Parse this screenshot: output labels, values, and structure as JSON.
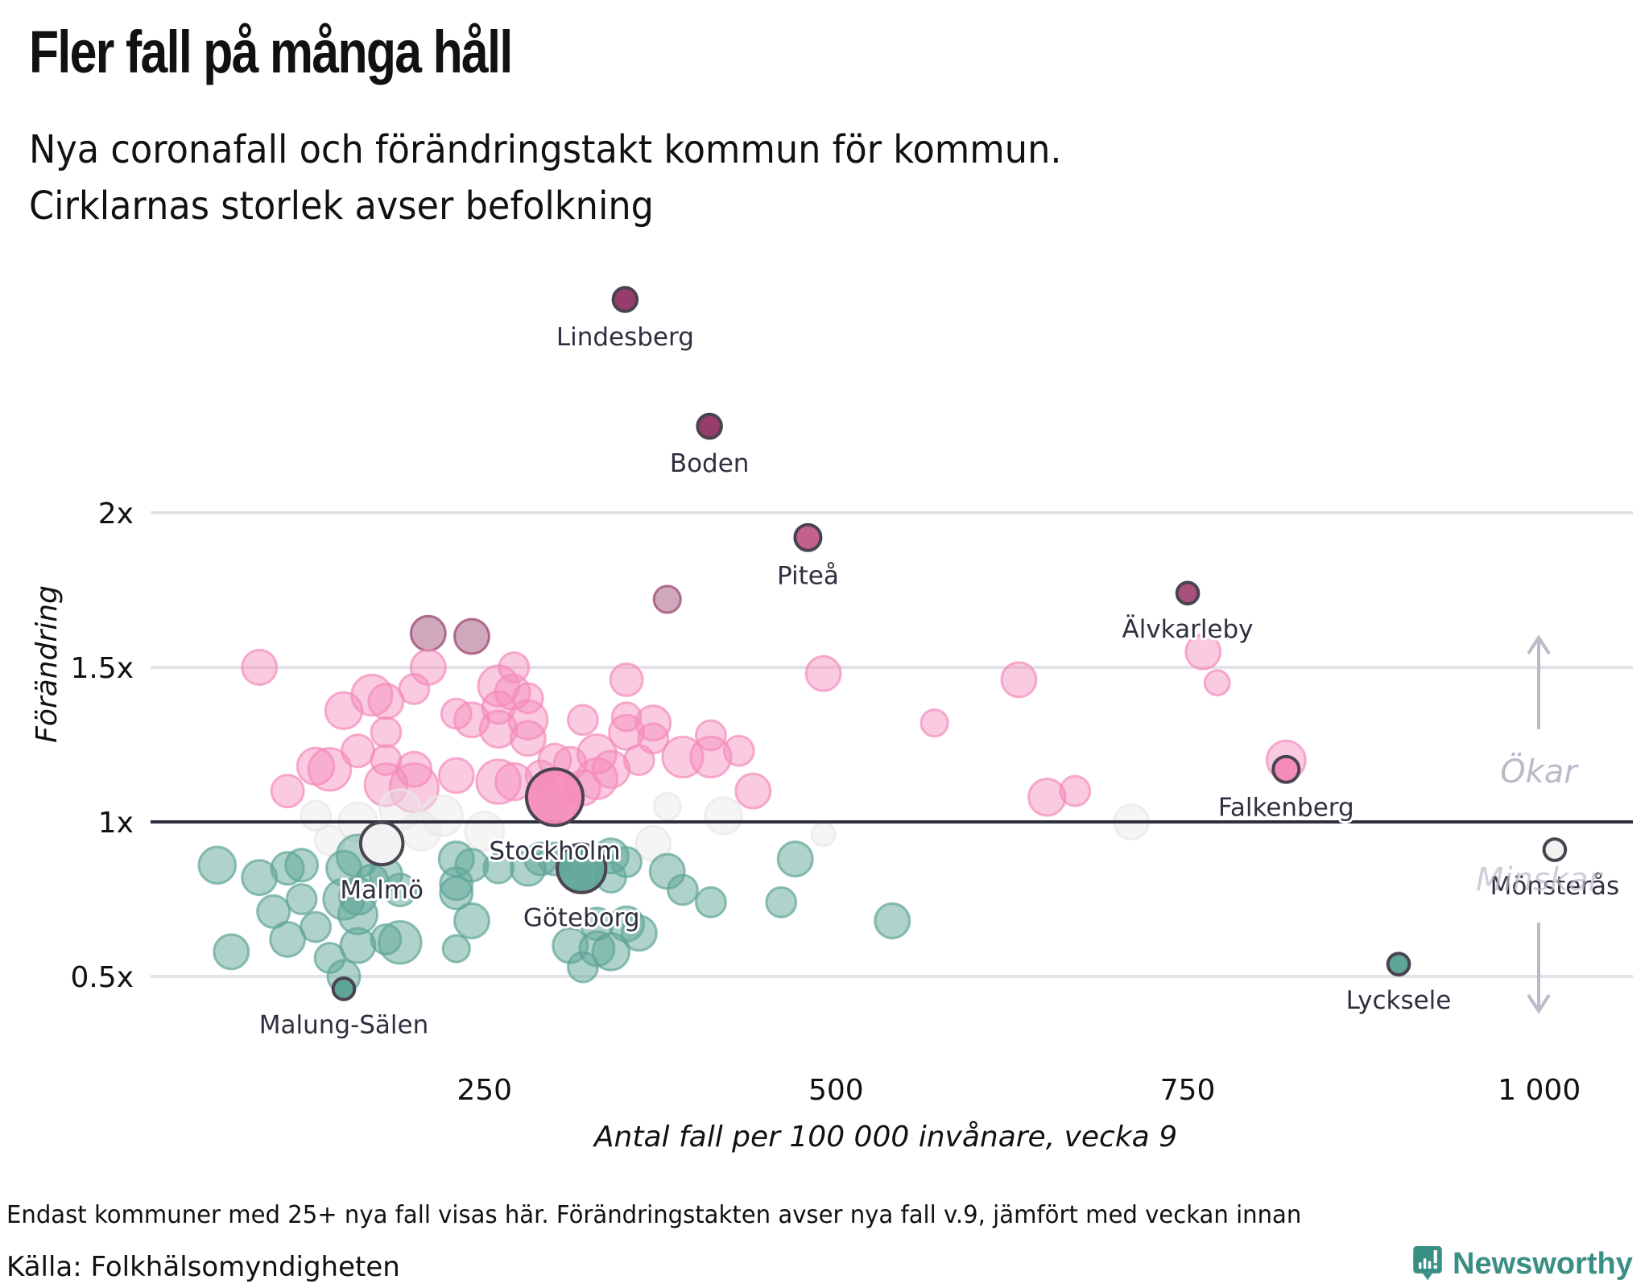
{
  "header": {
    "title": "Fler fall på många håll",
    "subtitle_line1": "Nya coronafall och förändringstakt kommun för kommun.",
    "subtitle_line2": "Cirklarnas storlek avser befolkning"
  },
  "footer": {
    "note": "Endast kommuner med 25+ nya fall visas här. Förändringstakten avser nya fall v.9, jämfört med veckan innan",
    "source": "Källa: Folkhälsomyndigheten",
    "brand": "Newsworthy",
    "brand_icon": "newsworthy-logo-icon"
  },
  "colors": {
    "increase": "#f48cbb",
    "strong_increase": "#973d6b",
    "decrease": "#5fa597",
    "neutral": "#e8e8e8",
    "highlight_stroke": "#4a4350",
    "gridline": "#e3e2e8",
    "baseline": "#2f2f3f",
    "direction": "#bbbac8",
    "brand": "#3a8f85"
  },
  "chart_data": {
    "type": "scatter",
    "title": "Fler fall på många håll",
    "subtitle": "Nya coronafall och förändringstakt kommun för kommun. Cirklarnas storlek avser befolkning",
    "xlabel": "Antal fall per 100 000 invånare, vecka 9",
    "ylabel": "Förändring",
    "xlim": [
      0,
      1075
    ],
    "ylim": [
      0.3,
      2.9
    ],
    "xticks": [
      {
        "value": 250,
        "label": "250"
      },
      {
        "value": 500,
        "label": "500"
      },
      {
        "value": 750,
        "label": "750"
      },
      {
        "value": 1000,
        "label": "1 000"
      }
    ],
    "yticks": [
      {
        "value": 0.5,
        "label": "0.5x"
      },
      {
        "value": 1,
        "label": "1x"
      },
      {
        "value": 1.5,
        "label": "1.5x"
      },
      {
        "value": 2,
        "label": "2x"
      }
    ],
    "grid": true,
    "reference_line": 1,
    "direction_labels": {
      "up": "Ökar",
      "down": "Minskar"
    },
    "size_encoding": "population (relative, 1-10)",
    "labeled_points": [
      {
        "name": "Lindesberg",
        "x": 350,
        "y": 2.69,
        "size": 2,
        "label_pos": "below"
      },
      {
        "name": "Boden",
        "x": 410,
        "y": 2.28,
        "size": 2,
        "label_pos": "below"
      },
      {
        "name": "Piteå",
        "x": 480,
        "y": 1.92,
        "size": 2.5,
        "label_pos": "below"
      },
      {
        "name": "Älvkarleby",
        "x": 750,
        "y": 1.74,
        "size": 1.5,
        "label_pos": "below"
      },
      {
        "name": "Falkenberg",
        "x": 820,
        "y": 1.17,
        "size": 2.5,
        "label_pos": "below"
      },
      {
        "name": "Mönsterås",
        "x": 1011,
        "y": 0.91,
        "size": 1.5,
        "label_pos": "below"
      },
      {
        "name": "Lycksele",
        "x": 900,
        "y": 0.54,
        "size": 1.5,
        "label_pos": "below"
      },
      {
        "name": "Malung-Sälen",
        "x": 150,
        "y": 0.46,
        "size": 1.5,
        "label_pos": "below"
      },
      {
        "name": "Malmö",
        "x": 177,
        "y": 0.93,
        "size": 5,
        "label_pos": "below"
      },
      {
        "name": "Stockholm",
        "x": 300,
        "y": 1.08,
        "size": 10,
        "label_pos": "below"
      },
      {
        "name": "Göteborg",
        "x": 319,
        "y": 0.85,
        "size": 7,
        "label_pos": "below"
      }
    ],
    "points": [
      {
        "x": 90,
        "y": 1.5,
        "size": 3
      },
      {
        "x": 210,
        "y": 1.61,
        "size": 3
      },
      {
        "x": 241,
        "y": 1.6,
        "size": 3
      },
      {
        "x": 380,
        "y": 1.72,
        "size": 1.5
      },
      {
        "x": 761,
        "y": 1.55,
        "size": 3
      },
      {
        "x": 491,
        "y": 1.48,
        "size": 3
      },
      {
        "x": 630,
        "y": 1.46,
        "size": 3
      },
      {
        "x": 771,
        "y": 1.45,
        "size": 1.2
      },
      {
        "x": 570,
        "y": 1.32,
        "size": 1.5
      },
      {
        "x": 820,
        "y": 1.2,
        "size": 4
      },
      {
        "x": 210,
        "y": 1.5,
        "size": 3
      },
      {
        "x": 271,
        "y": 1.5,
        "size": 2
      },
      {
        "x": 351,
        "y": 1.46,
        "size": 2.5
      },
      {
        "x": 260,
        "y": 1.44,
        "size": 4.5
      },
      {
        "x": 170,
        "y": 1.41,
        "size": 4.5
      },
      {
        "x": 270,
        "y": 1.42,
        "size": 3
      },
      {
        "x": 281,
        "y": 1.4,
        "size": 2
      },
      {
        "x": 180,
        "y": 1.39,
        "size": 3
      },
      {
        "x": 150,
        "y": 1.36,
        "size": 3.5
      },
      {
        "x": 200,
        "y": 1.43,
        "size": 2
      },
      {
        "x": 260,
        "y": 1.37,
        "size": 2.5
      },
      {
        "x": 230,
        "y": 1.35,
        "size": 2
      },
      {
        "x": 241,
        "y": 1.33,
        "size": 3
      },
      {
        "x": 320,
        "y": 1.33,
        "size": 2
      },
      {
        "x": 281,
        "y": 1.33,
        "size": 4
      },
      {
        "x": 351,
        "y": 1.34,
        "size": 1.8
      },
      {
        "x": 370,
        "y": 1.32,
        "size": 3
      },
      {
        "x": 180,
        "y": 1.29,
        "size": 2
      },
      {
        "x": 260,
        "y": 1.3,
        "size": 3.5
      },
      {
        "x": 351,
        "y": 1.29,
        "size": 3
      },
      {
        "x": 281,
        "y": 1.27,
        "size": 3
      },
      {
        "x": 370,
        "y": 1.27,
        "size": 2
      },
      {
        "x": 411,
        "y": 1.28,
        "size": 2
      },
      {
        "x": 160,
        "y": 1.23,
        "size": 2.5
      },
      {
        "x": 330,
        "y": 1.22,
        "size": 4
      },
      {
        "x": 431,
        "y": 1.23,
        "size": 2
      },
      {
        "x": 130,
        "y": 1.18,
        "size": 3.5
      },
      {
        "x": 140,
        "y": 1.17,
        "size": 5
      },
      {
        "x": 180,
        "y": 1.2,
        "size": 2
      },
      {
        "x": 300,
        "y": 1.2,
        "size": 2.5
      },
      {
        "x": 311,
        "y": 1.19,
        "size": 2.5
      },
      {
        "x": 360,
        "y": 1.2,
        "size": 2
      },
      {
        "x": 391,
        "y": 1.21,
        "size": 4.5
      },
      {
        "x": 411,
        "y": 1.21,
        "size": 4.5
      },
      {
        "x": 200,
        "y": 1.17,
        "size": 3
      },
      {
        "x": 230,
        "y": 1.15,
        "size": 3
      },
      {
        "x": 340,
        "y": 1.17,
        "size": 3.5
      },
      {
        "x": 180,
        "y": 1.12,
        "size": 5
      },
      {
        "x": 200,
        "y": 1.11,
        "size": 7
      },
      {
        "x": 260,
        "y": 1.13,
        "size": 5.5
      },
      {
        "x": 271,
        "y": 1.13,
        "size": 3.5
      },
      {
        "x": 330,
        "y": 1.14,
        "size": 4.5
      },
      {
        "x": 320,
        "y": 1.11,
        "size": 3
      },
      {
        "x": 290,
        "y": 1.15,
        "size": 2
      },
      {
        "x": 110,
        "y": 1.1,
        "size": 2.5
      },
      {
        "x": 441,
        "y": 1.1,
        "size": 3
      },
      {
        "x": 420,
        "y": 1.02,
        "size": 3.5
      },
      {
        "x": 650,
        "y": 1.08,
        "size": 3.5
      },
      {
        "x": 670,
        "y": 1.1,
        "size": 2
      },
      {
        "x": 710,
        "y": 1.0,
        "size": 3
      },
      {
        "x": 380,
        "y": 1.05,
        "size": 1.5
      },
      {
        "x": 491,
        "y": 0.96,
        "size": 1
      },
      {
        "x": 370,
        "y": 0.93,
        "size": 3
      },
      {
        "x": 140,
        "y": 0.94,
        "size": 2
      },
      {
        "x": 160,
        "y": 1.0,
        "size": 4
      },
      {
        "x": 190,
        "y": 1.04,
        "size": 4.5
      },
      {
        "x": 220,
        "y": 1.02,
        "size": 4.5
      },
      {
        "x": 250,
        "y": 0.97,
        "size": 4
      },
      {
        "x": 205,
        "y": 0.97,
        "size": 4
      },
      {
        "x": 130,
        "y": 1.02,
        "size": 2
      },
      {
        "x": 60,
        "y": 0.86,
        "size": 3.5
      },
      {
        "x": 90,
        "y": 0.82,
        "size": 3
      },
      {
        "x": 110,
        "y": 0.85,
        "size": 2.5
      },
      {
        "x": 120,
        "y": 0.86,
        "size": 2.5
      },
      {
        "x": 160,
        "y": 0.89,
        "size": 5
      },
      {
        "x": 150,
        "y": 0.85,
        "size": 3
      },
      {
        "x": 170,
        "y": 0.81,
        "size": 2.5
      },
      {
        "x": 180,
        "y": 0.83,
        "size": 2.5
      },
      {
        "x": 150,
        "y": 0.75,
        "size": 4.5
      },
      {
        "x": 160,
        "y": 0.76,
        "size": 3.5
      },
      {
        "x": 190,
        "y": 0.78,
        "size": 2.5
      },
      {
        "x": 230,
        "y": 0.88,
        "size": 3
      },
      {
        "x": 241,
        "y": 0.86,
        "size": 2.5
      },
      {
        "x": 230,
        "y": 0.8,
        "size": 2.5
      },
      {
        "x": 230,
        "y": 0.77,
        "size": 2.5
      },
      {
        "x": 260,
        "y": 0.85,
        "size": 2
      },
      {
        "x": 281,
        "y": 0.85,
        "size": 3
      },
      {
        "x": 290,
        "y": 0.88,
        "size": 2.5
      },
      {
        "x": 300,
        "y": 0.88,
        "size": 2.5
      },
      {
        "x": 340,
        "y": 0.89,
        "size": 3
      },
      {
        "x": 351,
        "y": 0.87,
        "size": 2
      },
      {
        "x": 340,
        "y": 0.82,
        "size": 2
      },
      {
        "x": 380,
        "y": 0.84,
        "size": 3
      },
      {
        "x": 471,
        "y": 0.88,
        "size": 3
      },
      {
        "x": 391,
        "y": 0.78,
        "size": 2
      },
      {
        "x": 411,
        "y": 0.74,
        "size": 2
      },
      {
        "x": 461,
        "y": 0.74,
        "size": 2
      },
      {
        "x": 120,
        "y": 0.75,
        "size": 2
      },
      {
        "x": 100,
        "y": 0.71,
        "size": 2.5
      },
      {
        "x": 160,
        "y": 0.7,
        "size": 4
      },
      {
        "x": 241,
        "y": 0.68,
        "size": 3
      },
      {
        "x": 330,
        "y": 0.67,
        "size": 2.5
      },
      {
        "x": 351,
        "y": 0.67,
        "size": 3
      },
      {
        "x": 360,
        "y": 0.64,
        "size": 3
      },
      {
        "x": 540,
        "y": 0.68,
        "size": 3
      },
      {
        "x": 130,
        "y": 0.66,
        "size": 2
      },
      {
        "x": 110,
        "y": 0.62,
        "size": 3
      },
      {
        "x": 160,
        "y": 0.6,
        "size": 3
      },
      {
        "x": 180,
        "y": 0.62,
        "size": 2
      },
      {
        "x": 190,
        "y": 0.61,
        "size": 5
      },
      {
        "x": 70,
        "y": 0.58,
        "size": 3
      },
      {
        "x": 140,
        "y": 0.56,
        "size": 2
      },
      {
        "x": 230,
        "y": 0.59,
        "size": 1.5
      },
      {
        "x": 311,
        "y": 0.6,
        "size": 3
      },
      {
        "x": 330,
        "y": 0.59,
        "size": 3
      },
      {
        "x": 340,
        "y": 0.58,
        "size": 3.5
      },
      {
        "x": 320,
        "y": 0.53,
        "size": 2
      },
      {
        "x": 150,
        "y": 0.5,
        "size": 2.5
      }
    ]
  }
}
